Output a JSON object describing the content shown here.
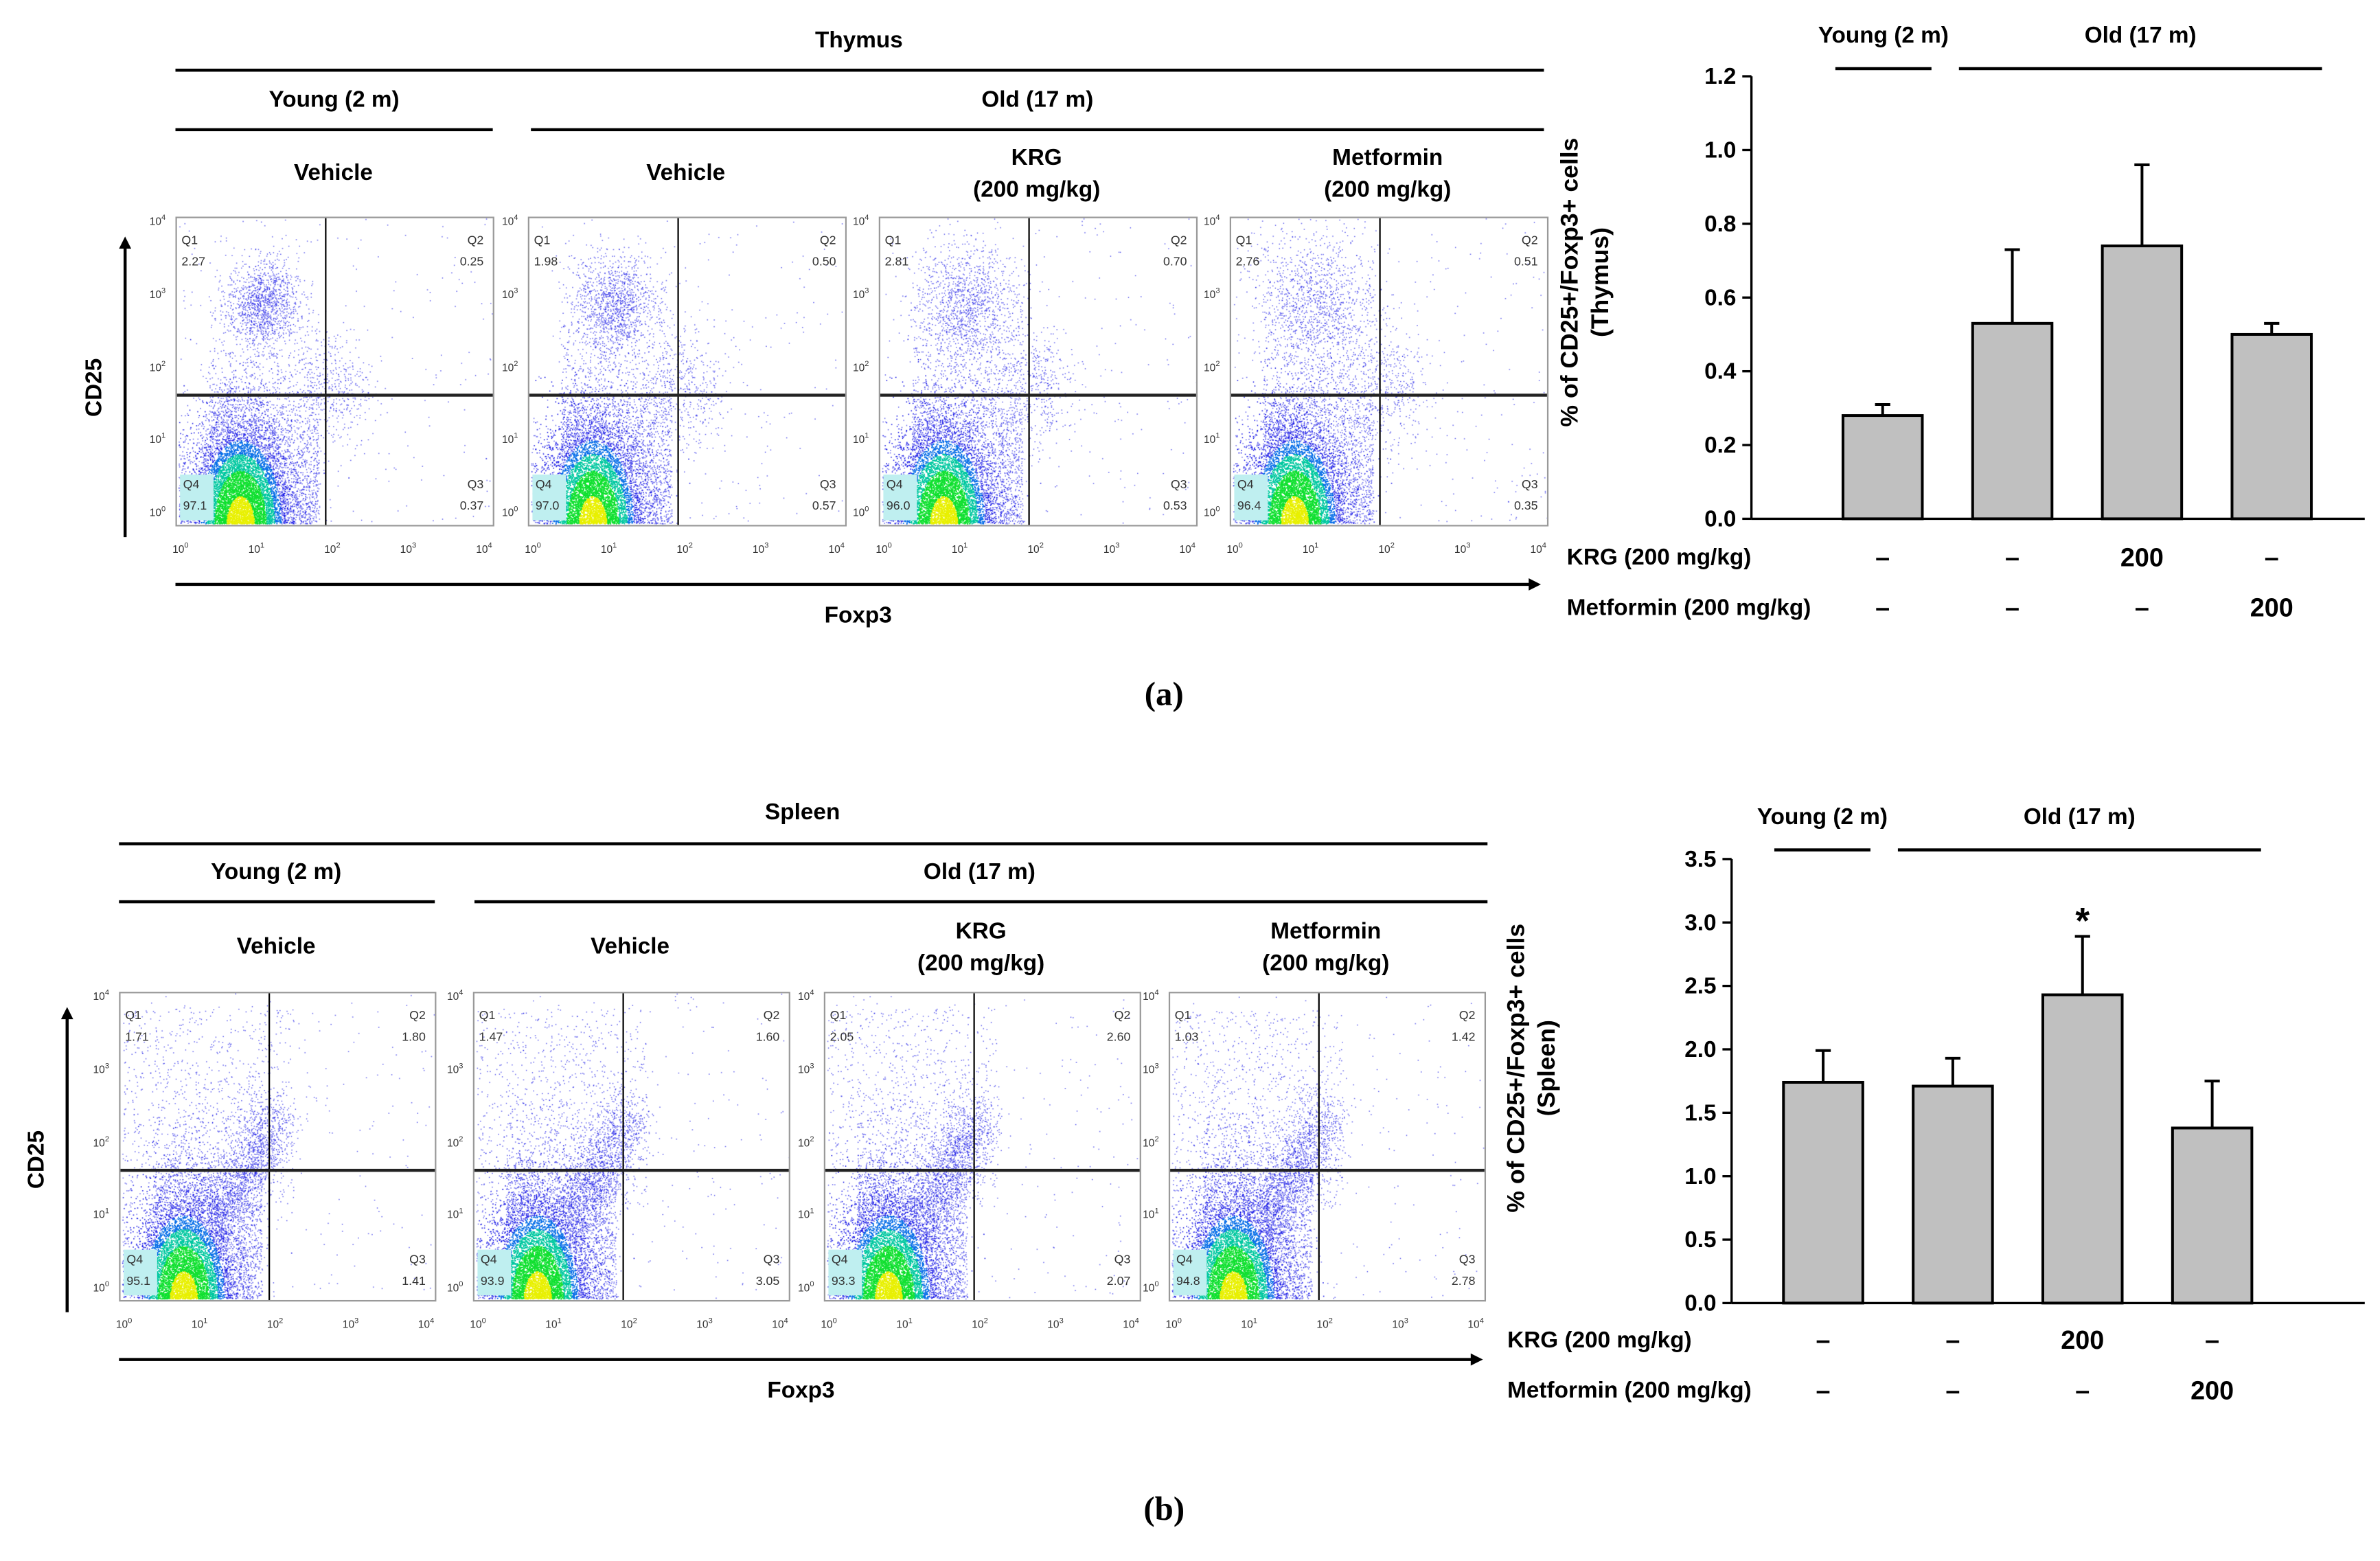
{
  "panels": [
    {
      "caption": "(a)",
      "tissue": "Thymus",
      "young_label": "Young (2 m)",
      "old_label": "Old (17 m)",
      "y_axis": "CD25",
      "x_axis": "Foxp3",
      "tick_base": "10",
      "tick_exponents": [
        "4",
        "3",
        "2",
        "1",
        "0"
      ],
      "x_tick_exponents": [
        "0",
        "1",
        "2",
        "3",
        "4"
      ],
      "plots": [
        {
          "title1": "Vehicle",
          "title2": "",
          "q1": "2.27",
          "q2": "0.25",
          "q3": "0.37",
          "q4": "97.1"
        },
        {
          "title1": "Vehicle",
          "title2": "",
          "q1": "1.98",
          "q2": "0.50",
          "q3": "0.57",
          "q4": "97.0"
        },
        {
          "title1": "KRG",
          "title2": "(200 mg/kg)",
          "q1": "2.81",
          "q2": "0.70",
          "q3": "0.53",
          "q4": "96.0"
        },
        {
          "title1": "Metformin",
          "title2": "(200 mg/kg)",
          "q1": "2.76",
          "q2": "0.51",
          "q3": "0.35",
          "q4": "96.4"
        }
      ],
      "quad_names": [
        "Q1",
        "Q2",
        "Q3",
        "Q4"
      ]
    },
    {
      "caption": "(b)",
      "tissue": "Spleen",
      "young_label": "Young (2 m)",
      "old_label": "Old (17 m)",
      "y_axis": "CD25",
      "x_axis": "Foxp3",
      "tick_base": "10",
      "tick_exponents": [
        "4",
        "3",
        "2",
        "1",
        "0"
      ],
      "x_tick_exponents": [
        "0",
        "1",
        "2",
        "3",
        "4"
      ],
      "plots": [
        {
          "title1": "Vehicle",
          "title2": "",
          "q1": "1.71",
          "q2": "1.80",
          "q3": "1.41",
          "q4": "95.1"
        },
        {
          "title1": "Vehicle",
          "title2": "",
          "q1": "1.47",
          "q2": "1.60",
          "q3": "3.05",
          "q4": "93.9"
        },
        {
          "title1": "KRG",
          "title2": "(200 mg/kg)",
          "q1": "2.05",
          "q2": "2.60",
          "q3": "2.07",
          "q4": "93.3"
        },
        {
          "title1": "Metformin",
          "title2": "(200 mg/kg)",
          "q1": "1.03",
          "q2": "1.42",
          "q3": "2.78",
          "q4": "94.8"
        }
      ],
      "quad_names": [
        "Q1",
        "Q2",
        "Q3",
        "Q4"
      ]
    }
  ],
  "chart_data": [
    {
      "type": "bar",
      "title": "",
      "ylabel": "% of CD25+/Foxp3+ cells",
      "ylabel_sub": "(Thymus)",
      "ylim": [
        0,
        1.2
      ],
      "yticks": [
        "0.0",
        "0.2",
        "0.4",
        "0.6",
        "0.8",
        "1.0",
        "1.2"
      ],
      "group_young": "Young (2 m)",
      "group_old": "Old (17 m)",
      "values": [
        0.28,
        0.53,
        0.74,
        0.5
      ],
      "errors": [
        0.03,
        0.2,
        0.22,
        0.03
      ],
      "significance": [
        "",
        "",
        "",
        ""
      ],
      "row_labels": [
        "KRG (200 mg/kg)",
        "Metformin (200 mg/kg)"
      ],
      "rows": [
        [
          "–",
          "–",
          "200",
          "–"
        ],
        [
          "–",
          "–",
          "–",
          "200"
        ]
      ],
      "bar_color": "#c0c0c0"
    },
    {
      "type": "bar",
      "title": "",
      "ylabel": "% of CD25+/Foxp3+ cells",
      "ylabel_sub": "(Spleen)",
      "ylim": [
        0,
        3.5
      ],
      "yticks": [
        "0.0",
        "0.5",
        "1.0",
        "1.5",
        "2.0",
        "2.5",
        "3.0",
        "3.5"
      ],
      "group_young": "Young (2 m)",
      "group_old": "Old (17 m)",
      "values": [
        1.74,
        1.71,
        2.43,
        1.38
      ],
      "errors": [
        0.25,
        0.22,
        0.46,
        0.37
      ],
      "significance": [
        "",
        "",
        "*",
        ""
      ],
      "row_labels": [
        "KRG (200 mg/kg)",
        "Metformin (200 mg/kg)"
      ],
      "rows": [
        [
          "–",
          "–",
          "200",
          "–"
        ],
        [
          "–",
          "–",
          "–",
          "200"
        ]
      ],
      "bar_color": "#c0c0c0"
    }
  ]
}
